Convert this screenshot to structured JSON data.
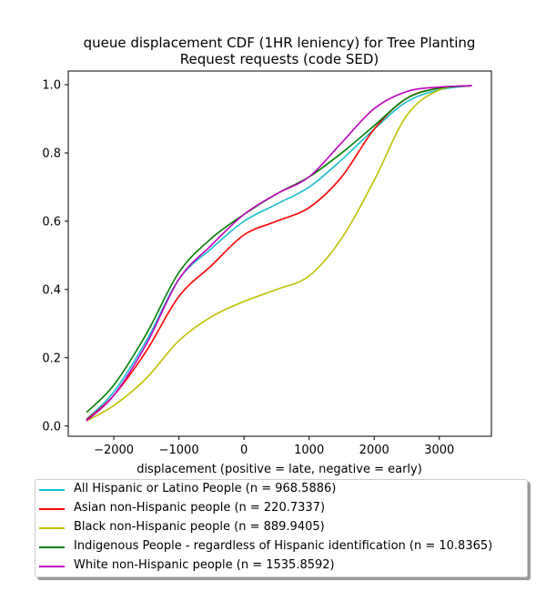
{
  "chart_data": {
    "type": "line",
    "title": "queue displacement CDF (1HR leniency) for Tree Planting Request  requests (code SED)",
    "title_lines": [
      "queue displacement CDF (1HR leniency) for Tree Planting",
      "Request  requests (code SED)"
    ],
    "xlabel": "displacement (positive = late, negative = early)",
    "ylabel": "",
    "xlim": [
      -2700,
      3800
    ],
    "ylim": [
      -0.03,
      1.04
    ],
    "xticks": [
      -2000,
      -1000,
      0,
      1000,
      2000,
      3000
    ],
    "xtick_labels": [
      "−2000",
      "−1000",
      "0",
      "1000",
      "2000",
      "3000"
    ],
    "yticks": [
      0.0,
      0.2,
      0.4,
      0.6,
      0.8,
      1.0
    ],
    "ytick_labels": [
      "0.0",
      "0.2",
      "0.4",
      "0.6",
      "0.8",
      "1.0"
    ],
    "grid": false,
    "legend_position": "below",
    "series": [
      {
        "name": "All Hispanic or Latino People (n = 968.5886)",
        "color": "#17becf",
        "points": [
          [
            -2420,
            0.02
          ],
          [
            -2000,
            0.1
          ],
          [
            -1500,
            0.25
          ],
          [
            -1000,
            0.43
          ],
          [
            -500,
            0.52
          ],
          [
            0,
            0.6
          ],
          [
            500,
            0.65
          ],
          [
            1000,
            0.7
          ],
          [
            1500,
            0.78
          ],
          [
            2000,
            0.87
          ],
          [
            2500,
            0.95
          ],
          [
            3000,
            0.985
          ],
          [
            3500,
            0.997
          ]
        ]
      },
      {
        "name": "Asian non-Hispanic people (n = 220.7337)",
        "color": "#ff0000",
        "points": [
          [
            -2420,
            0.018
          ],
          [
            -2000,
            0.09
          ],
          [
            -1500,
            0.22
          ],
          [
            -1000,
            0.38
          ],
          [
            -500,
            0.47
          ],
          [
            0,
            0.56
          ],
          [
            500,
            0.6
          ],
          [
            1000,
            0.64
          ],
          [
            1500,
            0.73
          ],
          [
            2000,
            0.87
          ],
          [
            2500,
            0.96
          ],
          [
            3000,
            0.99
          ],
          [
            3500,
            0.997
          ]
        ]
      },
      {
        "name": "Black non-Hispanic people (n = 889.9405)",
        "color": "#bfbf00",
        "points": [
          [
            -2420,
            0.015
          ],
          [
            -2000,
            0.06
          ],
          [
            -1500,
            0.14
          ],
          [
            -1000,
            0.25
          ],
          [
            -500,
            0.32
          ],
          [
            0,
            0.365
          ],
          [
            500,
            0.4
          ],
          [
            1000,
            0.44
          ],
          [
            1500,
            0.55
          ],
          [
            2000,
            0.72
          ],
          [
            2500,
            0.91
          ],
          [
            3000,
            0.985
          ],
          [
            3500,
            0.997
          ]
        ]
      },
      {
        "name": "Indigenous People - regardless of Hispanic identification (n = 10.8365)",
        "color": "#008000",
        "points": [
          [
            -2420,
            0.04
          ],
          [
            -2000,
            0.12
          ],
          [
            -1500,
            0.27
          ],
          [
            -1000,
            0.45
          ],
          [
            -500,
            0.55
          ],
          [
            0,
            0.62
          ],
          [
            500,
            0.68
          ],
          [
            1000,
            0.73
          ],
          [
            1500,
            0.8
          ],
          [
            2000,
            0.88
          ],
          [
            2500,
            0.96
          ],
          [
            3000,
            0.99
          ],
          [
            3500,
            0.997
          ]
        ]
      },
      {
        "name": "White non-Hispanic people (n = 1535.8592)",
        "color": "#bf00bf",
        "points": [
          [
            -2420,
            0.015
          ],
          [
            -2000,
            0.09
          ],
          [
            -1500,
            0.24
          ],
          [
            -1000,
            0.43
          ],
          [
            -500,
            0.53
          ],
          [
            0,
            0.62
          ],
          [
            500,
            0.68
          ],
          [
            1000,
            0.73
          ],
          [
            1500,
            0.83
          ],
          [
            2000,
            0.93
          ],
          [
            2500,
            0.98
          ],
          [
            3000,
            0.993
          ],
          [
            3500,
            0.997
          ]
        ]
      }
    ]
  }
}
